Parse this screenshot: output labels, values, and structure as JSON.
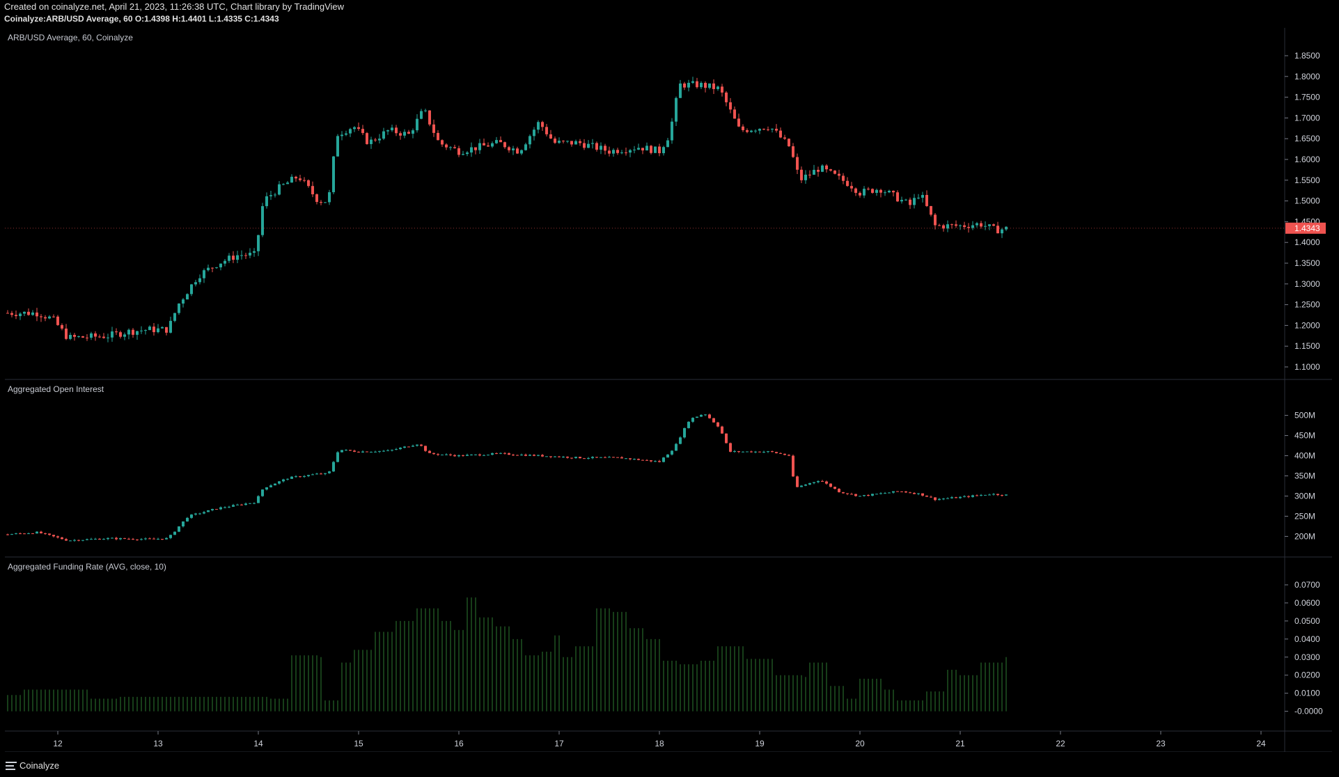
{
  "header": {
    "line1": "Created on coinalyze.net, April 21, 2023, 11:26:38 UTC, Chart library by TradingView",
    "line2": "Coinalyze:ARB/USD Average, 60 O:1.4398 H:1.4401 L:1.4335 C:1.4343"
  },
  "footer": {
    "brand": "Coinalyze"
  },
  "colors": {
    "background": "#000000",
    "up": "#26a69a",
    "down": "#ef5350",
    "funding": "#2e7d32",
    "grid": "#2a2e39",
    "text": "#d1d4dc",
    "price_badge": "#ef5350"
  },
  "chart_data": [
    {
      "type": "candlestick",
      "title": "ARB/USD Average, 60, Coinalyze",
      "ylim": [
        1.1,
        1.85
      ],
      "y_ticks": [
        "1.8500",
        "1.8000",
        "1.7500",
        "1.7000",
        "1.6500",
        "1.6000",
        "1.5500",
        "1.5000",
        "1.4500",
        "1.4000",
        "1.3500",
        "1.3000",
        "1.2500",
        "1.2000",
        "1.1500",
        "1.1000"
      ],
      "last_price": "1.4343",
      "close_points": [
        [
          11.5,
          1.23
        ],
        [
          11.8,
          1.23
        ],
        [
          11.95,
          1.215
        ],
        [
          12.1,
          1.17
        ],
        [
          12.3,
          1.172
        ],
        [
          12.5,
          1.175
        ],
        [
          12.7,
          1.185
        ],
        [
          12.9,
          1.19
        ],
        [
          13.1,
          1.19
        ],
        [
          13.2,
          1.25
        ],
        [
          13.4,
          1.32
        ],
        [
          13.6,
          1.35
        ],
        [
          13.8,
          1.37
        ],
        [
          13.97,
          1.37
        ],
        [
          14.05,
          1.5
        ],
        [
          14.2,
          1.53
        ],
        [
          14.4,
          1.56
        ],
        [
          14.6,
          1.5
        ],
        [
          14.7,
          1.5
        ],
        [
          14.78,
          1.66
        ],
        [
          14.95,
          1.68
        ],
        [
          15.1,
          1.64
        ],
        [
          15.3,
          1.67
        ],
        [
          15.5,
          1.66
        ],
        [
          15.65,
          1.72
        ],
        [
          15.8,
          1.64
        ],
        [
          16.0,
          1.62
        ],
        [
          16.2,
          1.63
        ],
        [
          16.4,
          1.64
        ],
        [
          16.6,
          1.62
        ],
        [
          16.8,
          1.69
        ],
        [
          16.95,
          1.64
        ],
        [
          17.2,
          1.64
        ],
        [
          17.5,
          1.62
        ],
        [
          17.8,
          1.63
        ],
        [
          18.0,
          1.62
        ],
        [
          18.1,
          1.66
        ],
        [
          18.2,
          1.78
        ],
        [
          18.4,
          1.78
        ],
        [
          18.6,
          1.77
        ],
        [
          18.8,
          1.67
        ],
        [
          19.1,
          1.68
        ],
        [
          19.3,
          1.63
        ],
        [
          19.4,
          1.55
        ],
        [
          19.6,
          1.58
        ],
        [
          19.9,
          1.54
        ],
        [
          20.0,
          1.52
        ],
        [
          20.2,
          1.53
        ],
        [
          20.5,
          1.49
        ],
        [
          20.6,
          1.52
        ],
        [
          20.75,
          1.44
        ],
        [
          21.0,
          1.44
        ],
        [
          21.2,
          1.445
        ],
        [
          21.35,
          1.43
        ],
        [
          21.5,
          1.4343
        ]
      ]
    },
    {
      "type": "candlestick",
      "title": "Aggregated Open Interest",
      "ylim": [
        180,
        520
      ],
      "y_ticks": [
        "500M",
        "450M",
        "400M",
        "350M",
        "300M",
        "250M",
        "200M"
      ],
      "close_points": [
        [
          11.5,
          205
        ],
        [
          11.8,
          210
        ],
        [
          12.1,
          190
        ],
        [
          12.5,
          195
        ],
        [
          12.9,
          193
        ],
        [
          13.1,
          195
        ],
        [
          13.3,
          250
        ],
        [
          13.6,
          270
        ],
        [
          13.97,
          285
        ],
        [
          14.05,
          320
        ],
        [
          14.3,
          345
        ],
        [
          14.6,
          355
        ],
        [
          14.7,
          355
        ],
        [
          14.8,
          415
        ],
        [
          15.0,
          410
        ],
        [
          15.3,
          412
        ],
        [
          15.6,
          430
        ],
        [
          15.7,
          405
        ],
        [
          16.0,
          400
        ],
        [
          16.4,
          405
        ],
        [
          16.8,
          400
        ],
        [
          17.2,
          395
        ],
        [
          17.6,
          395
        ],
        [
          18.0,
          385
        ],
        [
          18.15,
          420
        ],
        [
          18.3,
          490
        ],
        [
          18.45,
          505
        ],
        [
          18.6,
          470
        ],
        [
          18.7,
          410
        ],
        [
          19.1,
          410
        ],
        [
          19.3,
          400
        ],
        [
          19.35,
          320
        ],
        [
          19.6,
          340
        ],
        [
          19.8,
          310
        ],
        [
          20.0,
          300
        ],
        [
          20.4,
          312
        ],
        [
          20.6,
          305
        ],
        [
          20.75,
          292
        ],
        [
          21.0,
          297
        ],
        [
          21.3,
          305
        ],
        [
          21.5,
          302
        ]
      ]
    },
    {
      "type": "bar",
      "title": "Aggregated Funding Rate (AVG, close, 10)",
      "ylim": [
        -0.004,
        0.07
      ],
      "y_ticks": [
        "0.0700",
        "0.0600",
        "0.0500",
        "0.0400",
        "0.0300",
        "0.0200",
        "0.0100",
        "-0.0000"
      ],
      "steps": [
        [
          11.5,
          0.009
        ],
        [
          11.65,
          0.012
        ],
        [
          11.8,
          0.012
        ],
        [
          12.3,
          0.007
        ],
        [
          12.6,
          0.008
        ],
        [
          13.0,
          0.008
        ],
        [
          14.1,
          0.007
        ],
        [
          14.3,
          0.031
        ],
        [
          14.6,
          0.03
        ],
        [
          14.65,
          0.006
        ],
        [
          14.8,
          0.027
        ],
        [
          14.95,
          0.034
        ],
        [
          15.15,
          0.044
        ],
        [
          15.35,
          0.05
        ],
        [
          15.55,
          0.057
        ],
        [
          15.8,
          0.05
        ],
        [
          15.95,
          0.045
        ],
        [
          16.05,
          0.063
        ],
        [
          16.2,
          0.052
        ],
        [
          16.35,
          0.047
        ],
        [
          16.5,
          0.04
        ],
        [
          16.65,
          0.031
        ],
        [
          16.8,
          0.033
        ],
        [
          16.95,
          0.042
        ],
        [
          17.0,
          0.03
        ],
        [
          17.15,
          0.036
        ],
        [
          17.35,
          0.057
        ],
        [
          17.5,
          0.055
        ],
        [
          17.7,
          0.046
        ],
        [
          17.85,
          0.04
        ],
        [
          18.0,
          0.028
        ],
        [
          18.2,
          0.026
        ],
        [
          18.4,
          0.028
        ],
        [
          18.55,
          0.036
        ],
        [
          18.85,
          0.029
        ],
        [
          19.15,
          0.02
        ],
        [
          19.45,
          0.019
        ],
        [
          19.5,
          0.027
        ],
        [
          19.7,
          0.014
        ],
        [
          19.85,
          0.007
        ],
        [
          20.0,
          0.018
        ],
        [
          20.25,
          0.012
        ],
        [
          20.35,
          0.006
        ],
        [
          20.65,
          0.011
        ],
        [
          20.85,
          0.023
        ],
        [
          21.0,
          0.02
        ],
        [
          21.2,
          0.027
        ],
        [
          21.45,
          0.03
        ],
        [
          21.55,
          0.03
        ]
      ]
    }
  ],
  "x_axis": {
    "ticks": [
      "12",
      "13",
      "14",
      "15",
      "16",
      "17",
      "18",
      "19",
      "20",
      "21",
      "22",
      "23",
      "24"
    ]
  }
}
